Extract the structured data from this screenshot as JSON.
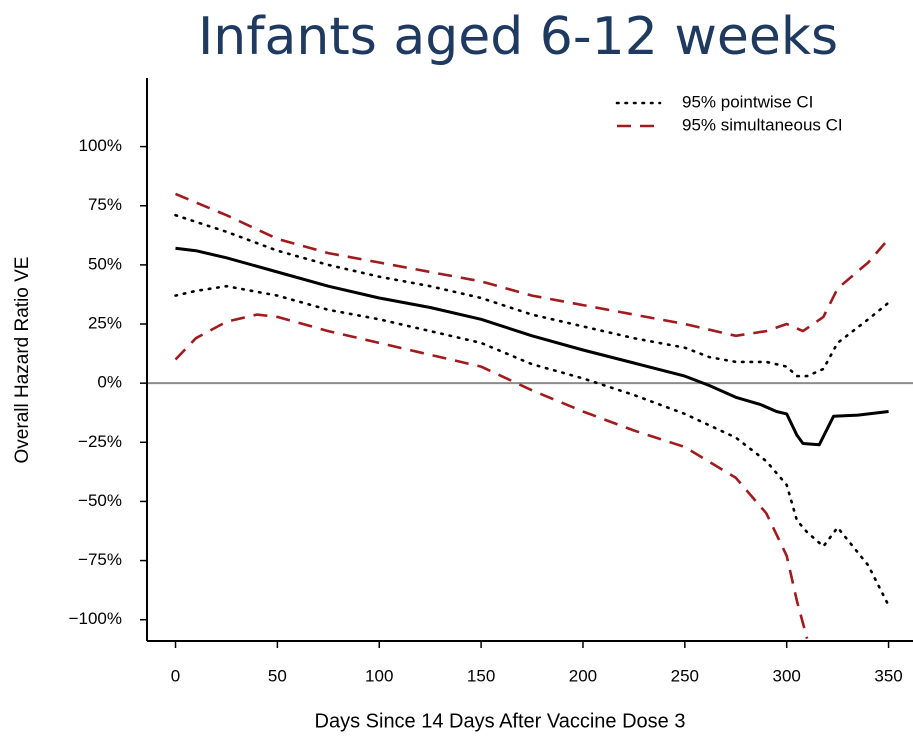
{
  "chart_data": {
    "type": "line",
    "title": "Infants aged 6-12 weeks",
    "x_label": "Days Since 14 Days After Vaccine Dose 3",
    "y_label": "Overall Hazard Ratio VE",
    "xlim": [
      -14,
      362
    ],
    "xticks": [
      0,
      50,
      100,
      150,
      200,
      250,
      300,
      350
    ],
    "ylim": [
      -109,
      129
    ],
    "yticks": [
      {
        "value": -100,
        "label": "−100%"
      },
      {
        "value": -75,
        "label": "−75%"
      },
      {
        "value": -50,
        "label": "−50%"
      },
      {
        "value": -25,
        "label": "−25%"
      },
      {
        "value": 0,
        "label": "0%"
      },
      {
        "value": 25,
        "label": "25%"
      },
      {
        "value": 50,
        "label": "50%"
      },
      {
        "value": 75,
        "label": "75%"
      },
      {
        "value": 100,
        "label": "100%"
      }
    ],
    "hline": 0,
    "hline_color": "#8c8c8c",
    "legend": "top-right",
    "series": [
      {
        "color": "#000000",
        "style": "solid",
        "x": [
          0,
          10,
          25,
          50,
          75,
          100,
          125,
          150,
          175,
          200,
          225,
          250,
          262,
          275,
          287,
          295,
          300,
          305,
          308,
          316,
          323,
          335,
          350
        ],
        "values": [
          57,
          56,
          53,
          47,
          41,
          36,
          32,
          27,
          20,
          14,
          8.5,
          3,
          -1,
          -6,
          -9,
          -12,
          -13,
          -22,
          -25.5,
          -26,
          -14,
          -13.5,
          -12
        ]
      },
      {
        "name": "95% pointwise CI",
        "color": "#000000",
        "style": "dotted",
        "x": [
          0,
          25,
          50,
          75,
          100,
          125,
          150,
          175,
          200,
          225,
          250,
          262,
          275,
          290,
          300,
          305,
          310,
          318,
          325,
          340,
          350
        ],
        "values": [
          71,
          64,
          56,
          50,
          45,
          41,
          36,
          29,
          24,
          19,
          15,
          11,
          9,
          9,
          7,
          3,
          3,
          6,
          17,
          27,
          34
        ]
      },
      {
        "color": "#000000",
        "style": "dotted",
        "x": [
          0,
          10,
          25,
          50,
          75,
          100,
          125,
          150,
          175,
          200,
          225,
          250,
          275,
          290,
          300,
          305,
          310,
          318,
          325,
          340,
          350
        ],
        "values": [
          37,
          39,
          41,
          37,
          31,
          27,
          22,
          17,
          8,
          2,
          -5,
          -13,
          -23,
          -33,
          -43,
          -58,
          -63,
          -69,
          -61,
          -77,
          -94
        ]
      },
      {
        "name": "95% simultaneous CI",
        "color": "#a01a1e",
        "style": "dashed",
        "x": [
          0,
          25,
          50,
          75,
          100,
          125,
          150,
          175,
          200,
          225,
          250,
          275,
          290,
          300,
          308,
          318,
          325,
          340,
          350
        ],
        "values": [
          80,
          71,
          61,
          55,
          51,
          47,
          43,
          37,
          33,
          29,
          25,
          20,
          22,
          25,
          22,
          28,
          40,
          51,
          61
        ]
      },
      {
        "color": "#a01a1e",
        "style": "dashed",
        "x": [
          0,
          10,
          25,
          40,
          50,
          75,
          100,
          125,
          150,
          175,
          200,
          225,
          250,
          275,
          290,
          300,
          305,
          310
        ],
        "values": [
          10,
          19,
          26,
          29,
          28,
          22,
          17,
          12,
          7,
          -3,
          -12,
          -20,
          -27,
          -40,
          -55,
          -73,
          -92,
          -108
        ]
      }
    ]
  }
}
